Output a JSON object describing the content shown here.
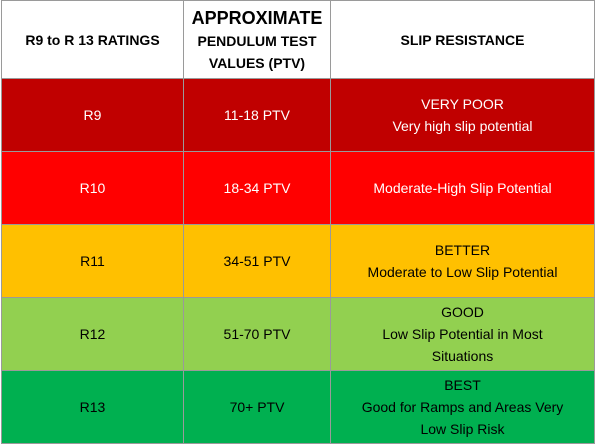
{
  "table": {
    "headers": {
      "col1": "R9 to R 13 RATINGS",
      "col2_line1": "APPROXIMATE",
      "col2_line2": "PENDULUM TEST",
      "col2_line3": "VALUES (PTV)",
      "col3": "SLIP RESISTANCE"
    },
    "rows": [
      {
        "rating": "R9",
        "ptv": "11-18 PTV",
        "resistance_line1": "VERY POOR",
        "resistance_line2": "Very high slip potential",
        "resistance_line3": "",
        "color": "#c00000"
      },
      {
        "rating": "R10",
        "ptv": "18-34 PTV",
        "resistance_line1": "Moderate-High Slip Potential",
        "resistance_line2": "",
        "resistance_line3": "",
        "color": "#ff0000"
      },
      {
        "rating": "R11",
        "ptv": "34-51 PTV",
        "resistance_line1": "BETTER",
        "resistance_line2": "Moderate to Low Slip Potential",
        "resistance_line3": "",
        "color": "#ffc000"
      },
      {
        "rating": "R12",
        "ptv": "51-70 PTV",
        "resistance_line1": "GOOD",
        "resistance_line2": "Low Slip Potential in Most",
        "resistance_line3": "Situations",
        "color": "#92d050"
      },
      {
        "rating": "R13",
        "ptv": "70+ PTV",
        "resistance_line1": "BEST",
        "resistance_line2": "Good for Ramps and Areas Very",
        "resistance_line3": "Low Slip Risk",
        "color": "#00b050"
      }
    ]
  }
}
